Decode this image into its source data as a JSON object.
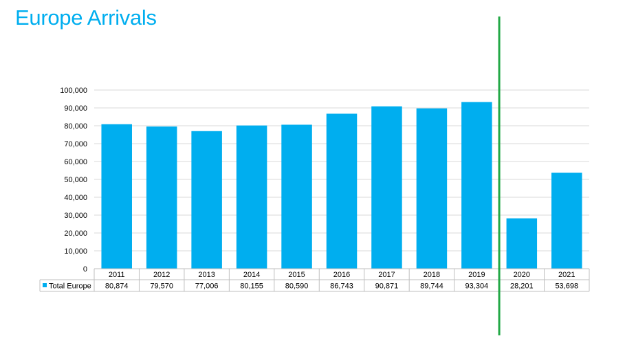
{
  "slide": {
    "title": "Europe Arrivals"
  },
  "colors": {
    "title": "#00aeef",
    "bar": "#00aeef",
    "divider": "#22a846",
    "grid": "#d9d9d9"
  },
  "chart_data": {
    "type": "bar",
    "categories": [
      "2011",
      "2012",
      "2013",
      "2014",
      "2015",
      "2016",
      "2017",
      "2018",
      "2019",
      "2020",
      "2021"
    ],
    "series": [
      {
        "name": "Total Europe",
        "values": [
          80874,
          79570,
          77006,
          80155,
          80590,
          86743,
          90871,
          89744,
          93304,
          28201,
          53698
        ],
        "labels": [
          "80,874",
          "79,570",
          "77,006",
          "80,155",
          "80,590",
          "86,743",
          "90,871",
          "89,744",
          "93,304",
          "28,201",
          "53,698"
        ]
      }
    ],
    "ylim": [
      0,
      100000
    ],
    "yticks": [
      "0",
      "10,000",
      "20,000",
      "30,000",
      "40,000",
      "50,000",
      "60,000",
      "70,000",
      "80,000",
      "90,000",
      "100,000"
    ],
    "grid": true,
    "legend": "data-table-left",
    "data_table": true,
    "divider_after_category": "2019"
  }
}
